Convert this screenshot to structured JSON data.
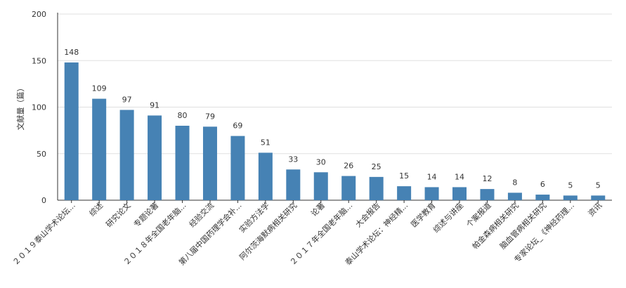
{
  "chart_data": {
    "type": "bar",
    "title": "",
    "xlabel": "",
    "ylabel": "文献量（篇）",
    "ylim": [
      0,
      200
    ],
    "yticks": [
      0,
      50,
      100,
      150,
      200
    ],
    "grid": true,
    "bar_color": "#4682b4",
    "categories": [
      "２０１９泰山学术论坛...",
      "综述",
      "研究论文",
      "专题论著",
      "２０１８年全国老年脑...",
      "经验交流",
      "第八届中国药理学会补...",
      "实验方法学",
      "阿尔茨海默病相关研究",
      "论著",
      "２０１７年全国老年脑...",
      "大会报告",
      "泰山学术论坛：神经精...",
      "医学教育",
      "综述与讲座",
      "个案报道",
      "帕金森病相关研究",
      "脑血管病相关研究",
      "专家论坛_《神经药理...",
      "资讯"
    ],
    "values": [
      148,
      109,
      97,
      91,
      80,
      79,
      69,
      51,
      33,
      30,
      26,
      25,
      15,
      14,
      14,
      12,
      8,
      6,
      5,
      5
    ]
  }
}
